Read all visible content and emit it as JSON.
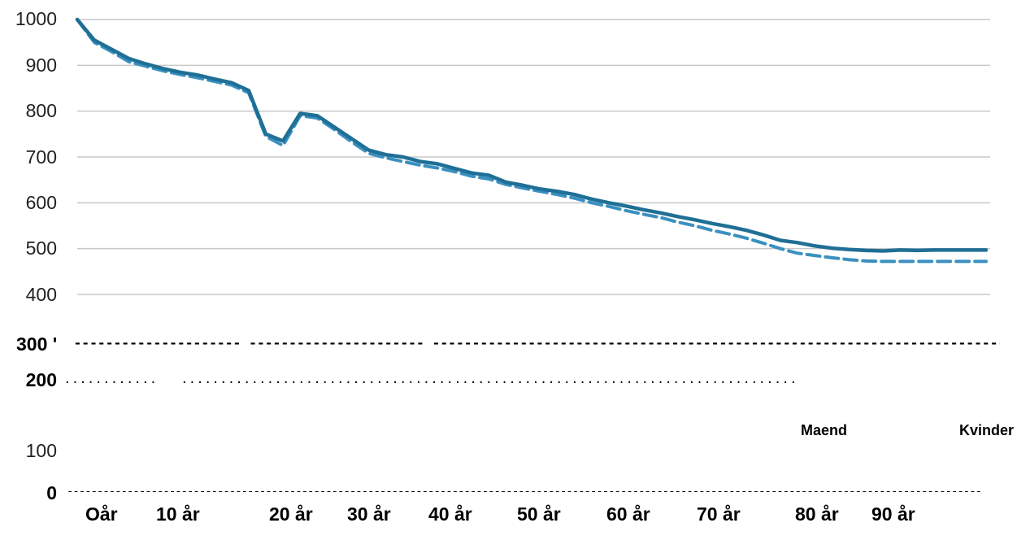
{
  "chart_data": {
    "type": "line",
    "title": "",
    "xlabel": "",
    "ylabel": "",
    "ylim": [
      0,
      1000
    ],
    "grid": true,
    "x_tick_labels": [
      "Oår",
      "10 år",
      "20 år",
      "30 år",
      "40 år",
      "50 år",
      "60 år",
      "70 år",
      "80 år",
      "90 år"
    ],
    "y_tick_labels": [
      "1000",
      "900",
      "800",
      "700",
      "600",
      "500",
      "400",
      "300 '",
      "200",
      "100",
      "0"
    ],
    "legend": [
      "Maend",
      "Kvinder"
    ],
    "legend_position": "right",
    "series": [
      {
        "name": "Maend",
        "style": "solid",
        "color": "#1f6f96",
        "values": [
          1000,
          955,
          935,
          915,
          903,
          893,
          885,
          879,
          870,
          862,
          845,
          750,
          735,
          795,
          790,
          765,
          740,
          715,
          705,
          700,
          690,
          685,
          675,
          665,
          660,
          645,
          638,
          630,
          625,
          618,
          608,
          600,
          593,
          585,
          578,
          570,
          563,
          555,
          548,
          540,
          530,
          518,
          513,
          506,
          501,
          498,
          496,
          495,
          497,
          496,
          497,
          497,
          497,
          497
        ]
      },
      {
        "name": "Kvinder",
        "style": "dashed",
        "color": "#3a90c0",
        "values": [
          1000,
          950,
          930,
          908,
          898,
          888,
          880,
          873,
          865,
          857,
          840,
          745,
          725,
          790,
          785,
          760,
          733,
          708,
          698,
          690,
          682,
          676,
          668,
          658,
          652,
          640,
          632,
          625,
          618,
          610,
          600,
          592,
          583,
          575,
          568,
          558,
          550,
          540,
          532,
          523,
          512,
          500,
          490,
          485,
          480,
          476,
          473,
          472,
          472,
          472,
          472,
          472,
          472,
          472
        ]
      }
    ]
  }
}
